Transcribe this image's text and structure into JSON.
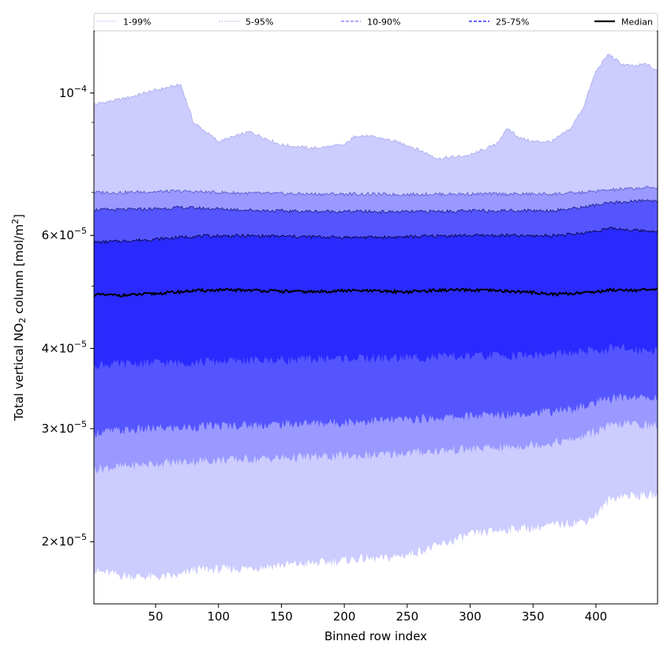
{
  "chart_data": {
    "type": "area",
    "title": "",
    "xlabel": "Binned row index",
    "ylabel_parts": {
      "pre": "Total vertical NO",
      "sub": "2",
      "mid": " column [mol/m",
      "sup": "2",
      "post": "]"
    },
    "y_scale": "log",
    "xlim": [
      1,
      449
    ],
    "ylim": [
      1.6e-05,
      0.000125
    ],
    "x_ticks": [
      50,
      100,
      150,
      200,
      250,
      300,
      350,
      400
    ],
    "x_tick_labels": [
      "50",
      "100",
      "150",
      "200",
      "250",
      "300",
      "350",
      "400"
    ],
    "y_ticks": [
      {
        "value": 0.0001,
        "mant": "",
        "base": "10",
        "exp": "−4"
      },
      {
        "value": 6e-05,
        "mant": "6",
        "base": "10",
        "exp": "−5"
      },
      {
        "value": 4e-05,
        "mant": "4",
        "base": "10",
        "exp": "−5"
      },
      {
        "value": 3e-05,
        "mant": "3",
        "base": "10",
        "exp": "−5"
      },
      {
        "value": 2e-05,
        "mant": "2",
        "base": "10",
        "exp": "−5"
      }
    ],
    "y_minor_ticks": [
      2e-05,
      3e-05,
      4e-05,
      5e-05,
      6e-05,
      7e-05,
      8e-05,
      9e-05
    ],
    "legend_placement": "top, above plot",
    "legend": [
      "1-99%",
      "5-95%",
      "10-90%",
      "25-75%",
      "Median"
    ],
    "x": [
      1,
      25,
      50,
      70,
      80,
      100,
      125,
      150,
      175,
      200,
      210,
      230,
      250,
      275,
      300,
      320,
      330,
      340,
      350,
      365,
      380,
      390,
      400,
      410,
      420,
      430,
      440,
      449
    ],
    "bands": [
      {
        "name": "1-99%",
        "color": "#ccccff",
        "lower": [
          1.8e-05,
          1.77e-05,
          1.76e-05,
          1.77e-05,
          1.81e-05,
          1.81e-05,
          1.82e-05,
          1.84e-05,
          1.85e-05,
          1.87e-05,
          1.88e-05,
          1.88e-05,
          1.91e-05,
          1.97e-05,
          2.05e-05,
          2.08e-05,
          2.09e-05,
          2.1e-05,
          2.1e-05,
          2.12e-05,
          2.14e-05,
          2.15e-05,
          2.2e-05,
          2.32e-05,
          2.36e-05,
          2.36e-05,
          2.36e-05,
          2.36e-05
        ],
        "upper": [
          9.6e-05,
          9.8e-05,
          0.000101,
          0.000103,
          9e-05,
          8.4e-05,
          8.7e-05,
          8.3e-05,
          8.2e-05,
          8.3e-05,
          8.6e-05,
          8.5e-05,
          8.3e-05,
          7.9e-05,
          8e-05,
          8.3e-05,
          8.8e-05,
          8.5e-05,
          8.4e-05,
          8.4e-05,
          8.8e-05,
          9.5e-05,
          0.000108,
          0.000115,
          0.000111,
          0.00011,
          0.000111,
          0.000108
        ]
      },
      {
        "name": "5-95%",
        "color": "#9999ff",
        "lower": [
          2.6e-05,
          2.62e-05,
          2.65e-05,
          2.66e-05,
          2.67e-05,
          2.68e-05,
          2.69e-05,
          2.7e-05,
          2.71e-05,
          2.72e-05,
          2.72e-05,
          2.73e-05,
          2.75e-05,
          2.77e-05,
          2.79e-05,
          2.8e-05,
          2.81e-05,
          2.82e-05,
          2.83e-05,
          2.85e-05,
          2.88e-05,
          2.92e-05,
          2.97e-05,
          3.02e-05,
          3.05e-05,
          3.05e-05,
          3.04e-05,
          3.03e-05
        ],
        "upper": [
          7e-05,
          7e-05,
          7.02e-05,
          7.03e-05,
          7.02e-05,
          7e-05,
          6.98e-05,
          6.97e-05,
          6.96e-05,
          6.96e-05,
          6.96e-05,
          6.95e-05,
          6.95e-05,
          6.96e-05,
          6.96e-05,
          6.96e-05,
          6.96e-05,
          6.96e-05,
          6.96e-05,
          6.96e-05,
          6.98e-05,
          7e-05,
          7.03e-05,
          7.06e-05,
          7.08e-05,
          7.1e-05,
          7.12e-05,
          7.12e-05
        ]
      },
      {
        "name": "10-90%",
        "color": "#5555ff",
        "lower": [
          2.96e-05,
          2.98e-05,
          3e-05,
          3.01e-05,
          3.02e-05,
          3.03e-05,
          3.04e-05,
          3.05e-05,
          3.06e-05,
          3.07e-05,
          3.08e-05,
          3.09e-05,
          3.1e-05,
          3.12e-05,
          3.14e-05,
          3.15e-05,
          3.16e-05,
          3.17e-05,
          3.18e-05,
          3.19e-05,
          3.22e-05,
          3.25e-05,
          3.29e-05,
          3.33e-05,
          3.36e-05,
          3.36e-05,
          3.35e-05,
          3.35e-05
        ],
        "upper": [
          6.58e-05,
          6.58e-05,
          6.6e-05,
          6.63e-05,
          6.62e-05,
          6.6e-05,
          6.57e-05,
          6.55e-05,
          6.54e-05,
          6.54e-05,
          6.54e-05,
          6.53e-05,
          6.53e-05,
          6.54e-05,
          6.55e-05,
          6.56e-05,
          6.56e-05,
          6.56e-05,
          6.56e-05,
          6.56e-05,
          6.6e-05,
          6.64e-05,
          6.69e-05,
          6.73e-05,
          6.76e-05,
          6.78e-05,
          6.8e-05,
          6.8e-05
        ]
      },
      {
        "name": "25-75%",
        "color": "#2a2aff",
        "lower": [
          3.78e-05,
          3.78e-05,
          3.8e-05,
          3.8e-05,
          3.81e-05,
          3.82e-05,
          3.83e-05,
          3.84e-05,
          3.85e-05,
          3.86e-05,
          3.86e-05,
          3.86e-05,
          3.87e-05,
          3.88e-05,
          3.89e-05,
          3.9e-05,
          3.9e-05,
          3.9e-05,
          3.91e-05,
          3.91e-05,
          3.93e-05,
          3.95e-05,
          3.97e-05,
          3.99e-05,
          4e-05,
          3.99e-05,
          3.98e-05,
          3.98e-05
        ],
        "upper": [
          5.85e-05,
          5.88e-05,
          5.92e-05,
          5.96e-05,
          5.98e-05,
          5.99e-05,
          5.99e-05,
          5.98e-05,
          5.97e-05,
          5.96e-05,
          5.96e-05,
          5.96e-05,
          5.97e-05,
          5.99e-05,
          6e-05,
          6e-05,
          6e-05,
          5.99e-05,
          5.99e-05,
          6e-05,
          6.02e-05,
          6.05e-05,
          6.1e-05,
          6.15e-05,
          6.14e-05,
          6.11e-05,
          6.1e-05,
          6.1e-05
        ]
      }
    ],
    "median": {
      "name": "Median",
      "color": "#000000",
      "values": [
        4.85e-05,
        4.84e-05,
        4.87e-05,
        4.9e-05,
        4.92e-05,
        4.93e-05,
        4.93e-05,
        4.91e-05,
        4.9e-05,
        4.92e-05,
        4.92e-05,
        4.91e-05,
        4.9e-05,
        4.93e-05,
        4.93e-05,
        4.92e-05,
        4.91e-05,
        4.9e-05,
        4.89e-05,
        4.86e-05,
        4.87e-05,
        4.89e-05,
        4.9e-05,
        4.93e-05,
        4.94e-05,
        4.93e-05,
        4.93e-05,
        4.94e-05
      ]
    },
    "boundary_line_colors": [
      "#aaaaee",
      "#5555cc",
      "#1a1a88",
      "#000033"
    ]
  }
}
